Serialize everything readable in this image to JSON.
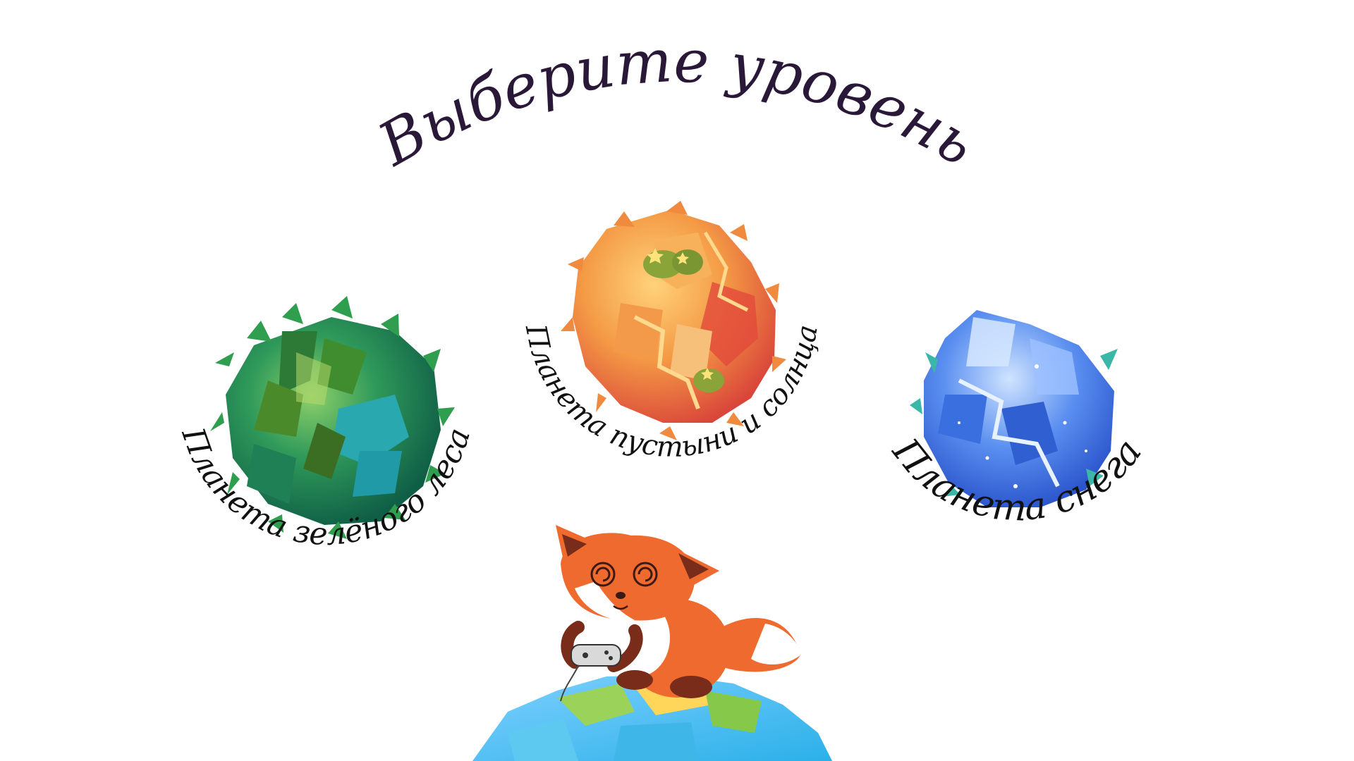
{
  "screen": {
    "title": "Выберите уровень"
  },
  "levels": [
    {
      "id": "forest",
      "label": "Планета зелёного леса"
    },
    {
      "id": "desert",
      "label": "Планета пустыни и солнца"
    },
    {
      "id": "snow",
      "label": "Планета снега"
    }
  ],
  "colors": {
    "title": "#2a1838",
    "label": "#111111",
    "forest_primary": "#2e9a5a",
    "desert_primary": "#ef8a3c",
    "snow_primary": "#4a7fe0",
    "fox": "#ef6a2e"
  },
  "icons": {
    "mascot": "fox-with-gamepad-icon",
    "home_planet": "home-planet-icon"
  }
}
